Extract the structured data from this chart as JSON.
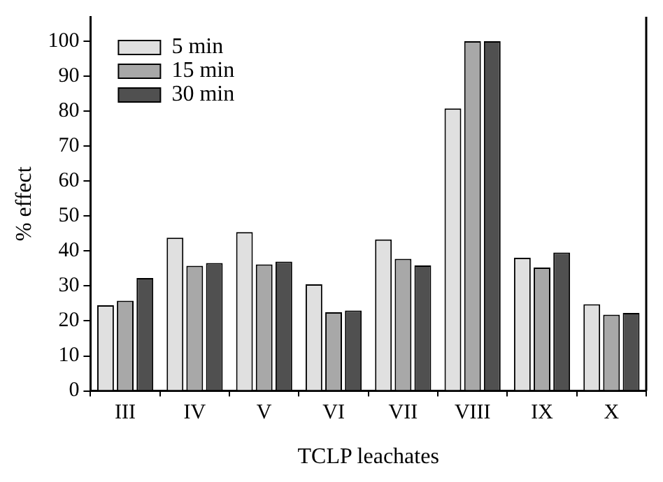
{
  "chart_data": {
    "type": "bar",
    "xlabel": "TCLP leachates",
    "ylabel": "% effect",
    "categories": [
      "III",
      "IV",
      "V",
      "VI",
      "VII",
      "VIII",
      "IX",
      "X"
    ],
    "series": [
      {
        "name": "5 min",
        "color": "#e0e0e0",
        "values": [
          24.5,
          43.8,
          45.4,
          30.5,
          43.3,
          80.8,
          38.1,
          24.8
        ]
      },
      {
        "name": "15 min",
        "color": "#a8a8a8",
        "values": [
          25.8,
          35.8,
          36.2,
          22.5,
          37.8,
          100,
          35.3,
          21.8
        ]
      },
      {
        "name": "30 min",
        "color": "#505050",
        "values": [
          32.3,
          36.6,
          37,
          23,
          35.9,
          100,
          39.6,
          22.3
        ]
      }
    ],
    "ylim": [
      0,
      107
    ],
    "yticks": [
      0,
      10,
      20,
      30,
      40,
      50,
      60,
      70,
      80,
      90,
      100
    ],
    "grid": false,
    "legend": "top left"
  }
}
